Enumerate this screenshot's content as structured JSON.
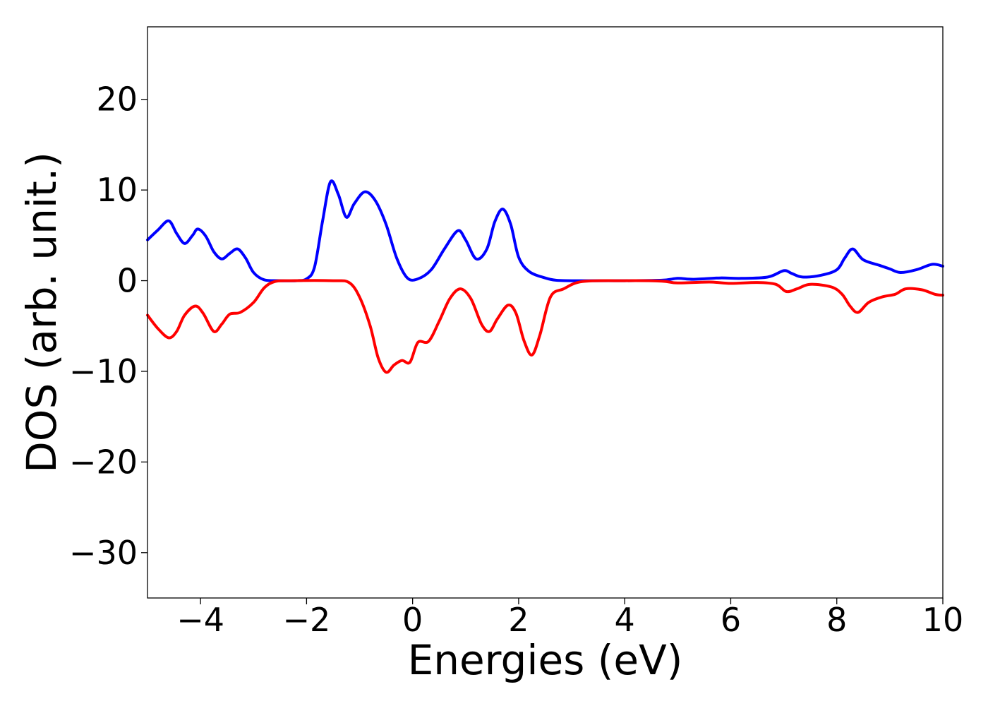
{
  "chart_data": {
    "type": "line",
    "title": "",
    "xlabel": "Energies (eV)",
    "ylabel": "DOS (arb. unit.)",
    "xlim": [
      -5,
      10
    ],
    "ylim": [
      -35,
      28
    ],
    "xticks": [
      -4,
      -2,
      0,
      2,
      4,
      6,
      8,
      10
    ],
    "xtick_labels": [
      "−4",
      "−2",
      "0",
      "2",
      "4",
      "6",
      "8",
      "10"
    ],
    "yticks": [
      -30,
      -20,
      -10,
      0,
      10,
      20
    ],
    "ytick_labels": [
      "−30",
      "−20",
      "−10",
      "0",
      "10",
      "20"
    ],
    "grid": false,
    "legend": "none",
    "series": [
      {
        "color": "#0000ff",
        "points": [
          [
            -5.0,
            4.5
          ],
          [
            -4.8,
            5.6
          ],
          [
            -4.6,
            6.6
          ],
          [
            -4.45,
            5.2
          ],
          [
            -4.3,
            4.1
          ],
          [
            -4.15,
            5.0
          ],
          [
            -4.05,
            5.7
          ],
          [
            -3.9,
            4.9
          ],
          [
            -3.75,
            3.2
          ],
          [
            -3.6,
            2.4
          ],
          [
            -3.45,
            3.0
          ],
          [
            -3.3,
            3.5
          ],
          [
            -3.15,
            2.5
          ],
          [
            -3.0,
            0.9
          ],
          [
            -2.8,
            0.1
          ],
          [
            -2.5,
            0.0
          ],
          [
            -2.2,
            0.0
          ],
          [
            -2.0,
            0.2
          ],
          [
            -1.85,
            1.5
          ],
          [
            -1.7,
            6.5
          ],
          [
            -1.55,
            10.9
          ],
          [
            -1.4,
            9.5
          ],
          [
            -1.25,
            7.0
          ],
          [
            -1.1,
            8.5
          ],
          [
            -0.9,
            9.8
          ],
          [
            -0.7,
            8.8
          ],
          [
            -0.5,
            6.2
          ],
          [
            -0.3,
            2.5
          ],
          [
            -0.1,
            0.3
          ],
          [
            0.1,
            0.2
          ],
          [
            0.35,
            1.2
          ],
          [
            0.6,
            3.5
          ],
          [
            0.85,
            5.5
          ],
          [
            1.0,
            4.5
          ],
          [
            1.2,
            2.4
          ],
          [
            1.4,
            3.5
          ],
          [
            1.55,
            6.5
          ],
          [
            1.7,
            7.9
          ],
          [
            1.85,
            6.2
          ],
          [
            2.0,
            2.6
          ],
          [
            2.2,
            1.0
          ],
          [
            2.5,
            0.3
          ],
          [
            2.7,
            0.05
          ],
          [
            3.0,
            0.0
          ],
          [
            4.0,
            0.0
          ],
          [
            4.7,
            0.05
          ],
          [
            5.0,
            0.25
          ],
          [
            5.3,
            0.15
          ],
          [
            5.8,
            0.3
          ],
          [
            6.2,
            0.25
          ],
          [
            6.7,
            0.4
          ],
          [
            7.0,
            1.1
          ],
          [
            7.15,
            0.8
          ],
          [
            7.35,
            0.4
          ],
          [
            7.7,
            0.6
          ],
          [
            8.0,
            1.2
          ],
          [
            8.15,
            2.5
          ],
          [
            8.3,
            3.5
          ],
          [
            8.5,
            2.3
          ],
          [
            8.8,
            1.7
          ],
          [
            9.0,
            1.3
          ],
          [
            9.2,
            0.9
          ],
          [
            9.5,
            1.2
          ],
          [
            9.8,
            1.8
          ],
          [
            10.0,
            1.6
          ]
        ]
      },
      {
        "color": "#ff0000",
        "points": [
          [
            -5.0,
            -3.8
          ],
          [
            -4.8,
            -5.3
          ],
          [
            -4.6,
            -6.3
          ],
          [
            -4.45,
            -5.6
          ],
          [
            -4.3,
            -3.8
          ],
          [
            -4.1,
            -2.8
          ],
          [
            -3.95,
            -3.6
          ],
          [
            -3.75,
            -5.6
          ],
          [
            -3.6,
            -4.8
          ],
          [
            -3.45,
            -3.7
          ],
          [
            -3.25,
            -3.5
          ],
          [
            -3.0,
            -2.4
          ],
          [
            -2.8,
            -0.8
          ],
          [
            -2.6,
            -0.1
          ],
          [
            -2.3,
            0.0
          ],
          [
            -1.5,
            0.0
          ],
          [
            -1.2,
            -0.2
          ],
          [
            -1.0,
            -1.8
          ],
          [
            -0.8,
            -5.0
          ],
          [
            -0.65,
            -8.5
          ],
          [
            -0.5,
            -10.1
          ],
          [
            -0.35,
            -9.3
          ],
          [
            -0.2,
            -8.8
          ],
          [
            -0.05,
            -9.0
          ],
          [
            0.1,
            -6.8
          ],
          [
            0.3,
            -6.7
          ],
          [
            0.5,
            -4.5
          ],
          [
            0.7,
            -2.0
          ],
          [
            0.9,
            -0.9
          ],
          [
            1.1,
            -2.0
          ],
          [
            1.3,
            -4.8
          ],
          [
            1.45,
            -5.6
          ],
          [
            1.6,
            -4.2
          ],
          [
            1.8,
            -2.7
          ],
          [
            1.95,
            -3.6
          ],
          [
            2.1,
            -6.6
          ],
          [
            2.25,
            -8.2
          ],
          [
            2.4,
            -6.0
          ],
          [
            2.6,
            -1.8
          ],
          [
            2.85,
            -0.9
          ],
          [
            3.2,
            -0.1
          ],
          [
            4.0,
            0.0
          ],
          [
            4.7,
            -0.05
          ],
          [
            5.0,
            -0.25
          ],
          [
            5.6,
            -0.15
          ],
          [
            6.0,
            -0.3
          ],
          [
            6.5,
            -0.2
          ],
          [
            6.85,
            -0.4
          ],
          [
            7.05,
            -1.2
          ],
          [
            7.25,
            -0.9
          ],
          [
            7.5,
            -0.4
          ],
          [
            7.9,
            -0.7
          ],
          [
            8.1,
            -1.5
          ],
          [
            8.25,
            -2.8
          ],
          [
            8.4,
            -3.5
          ],
          [
            8.6,
            -2.4
          ],
          [
            8.85,
            -1.8
          ],
          [
            9.1,
            -1.5
          ],
          [
            9.3,
            -0.9
          ],
          [
            9.6,
            -1.0
          ],
          [
            9.85,
            -1.5
          ],
          [
            10.0,
            -1.6
          ]
        ]
      }
    ]
  }
}
